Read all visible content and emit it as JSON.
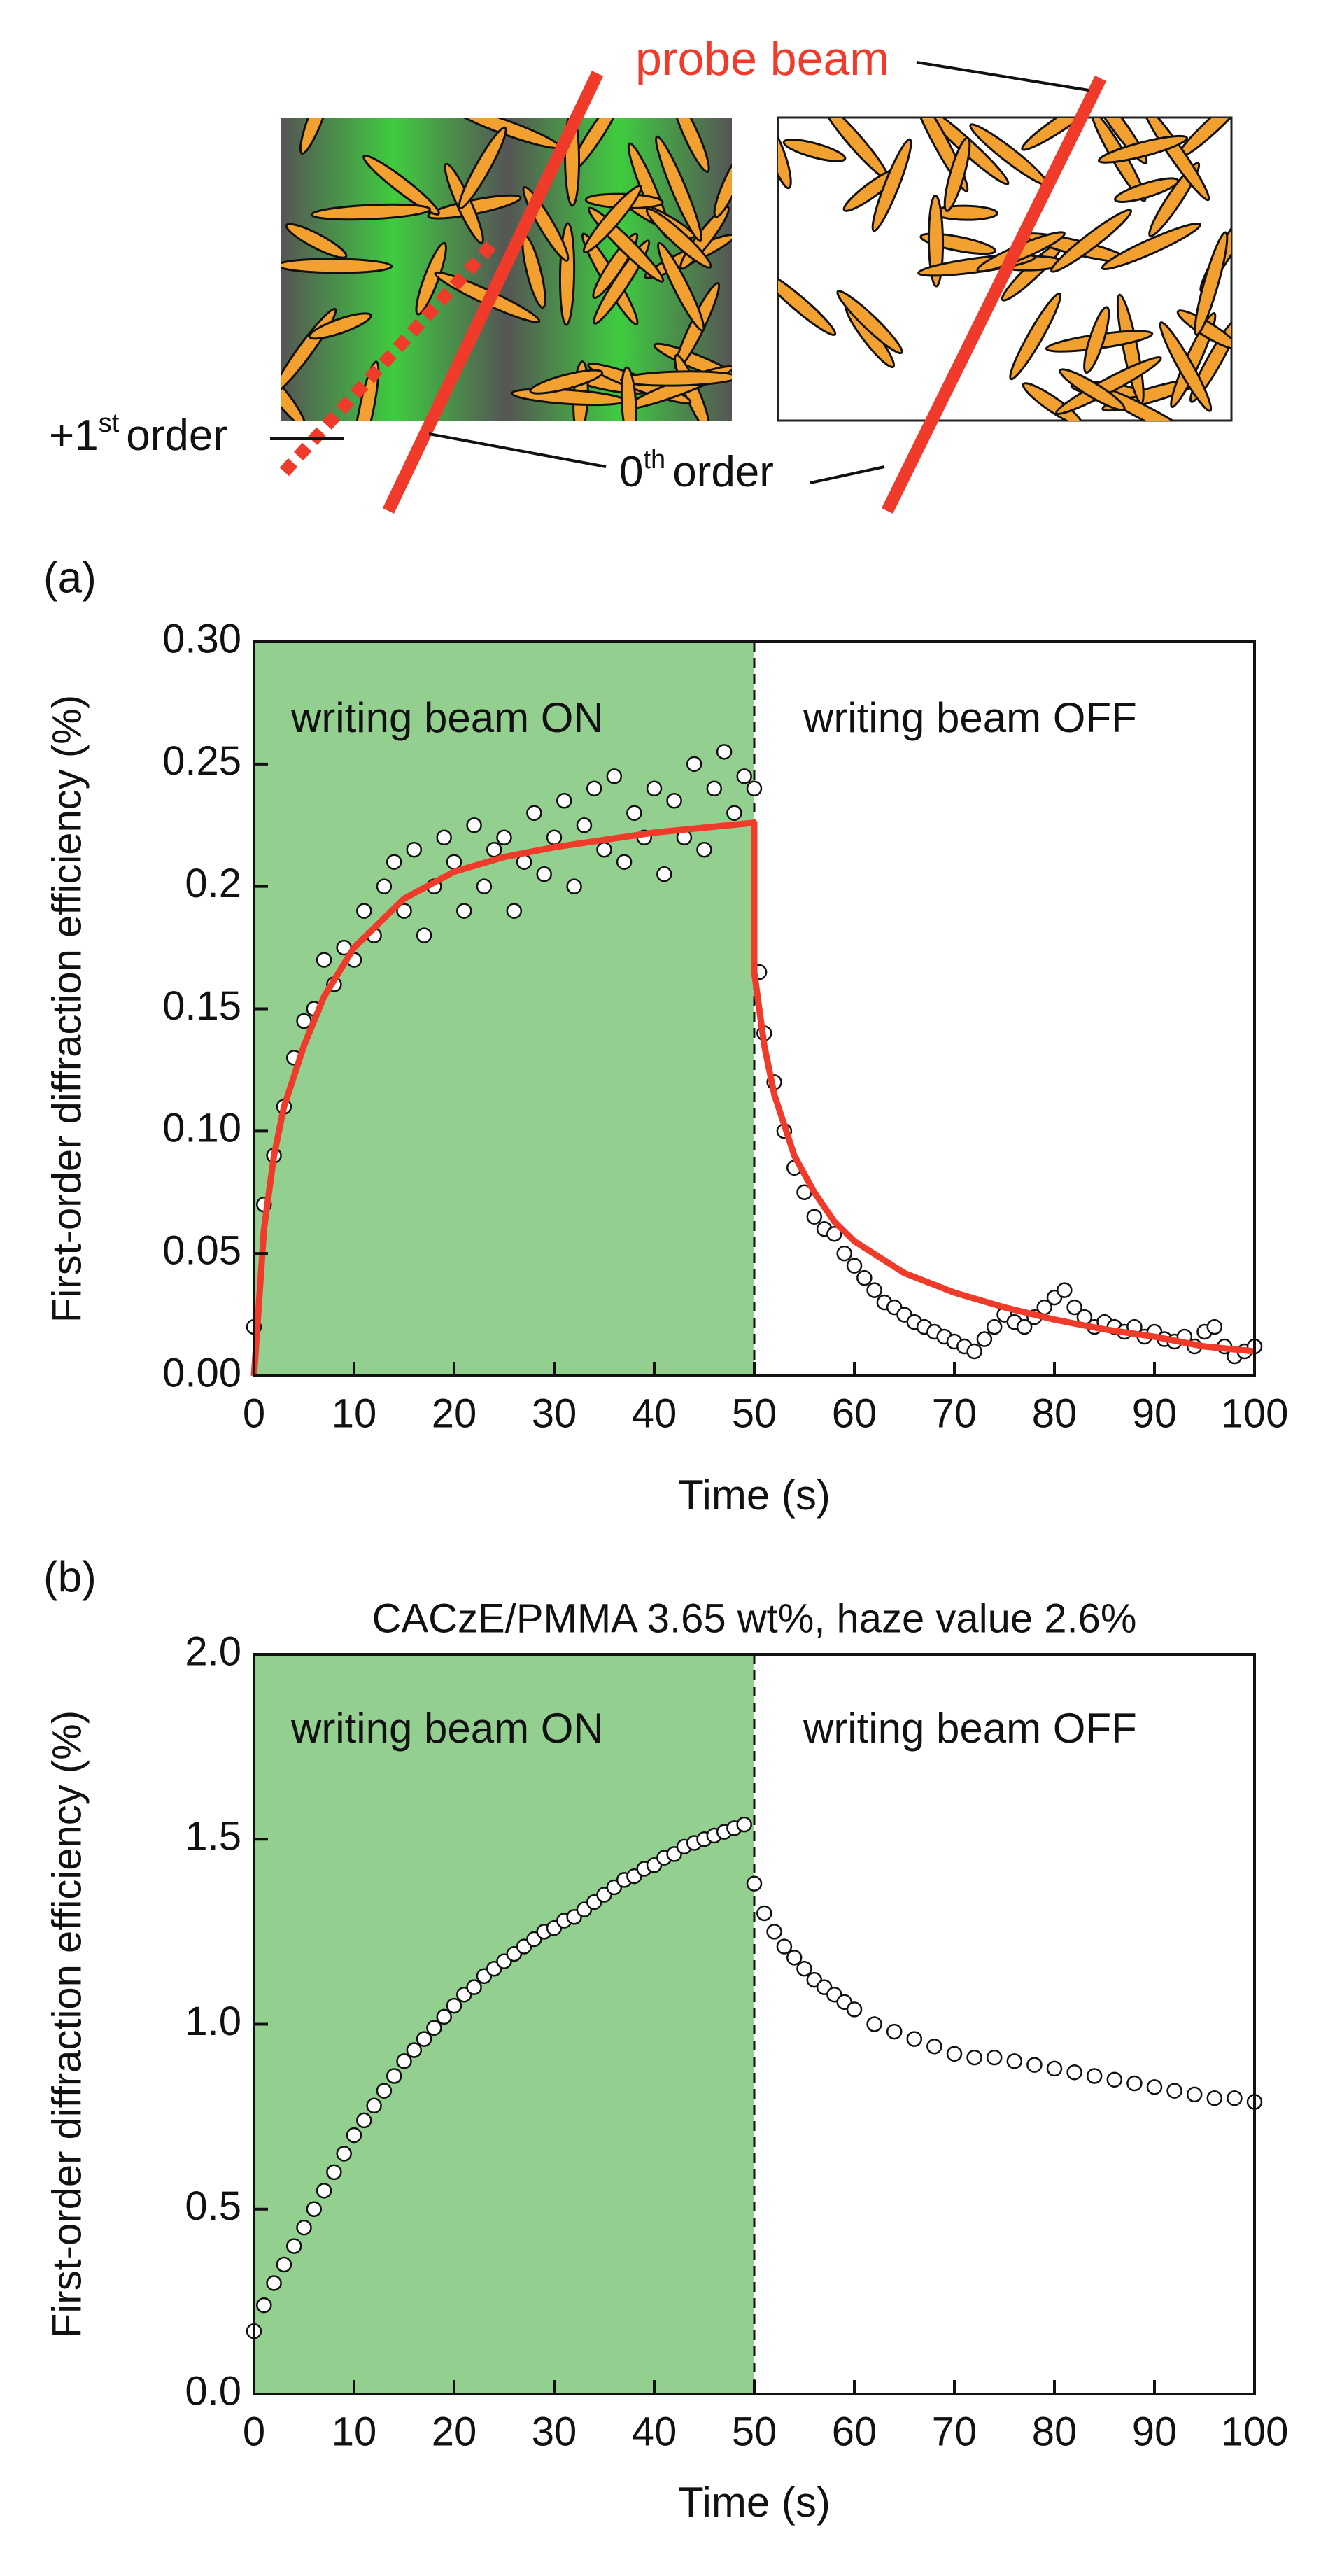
{
  "schematic": {
    "probe_label": "probe beam",
    "first_order": [
      "+1",
      "st",
      "order"
    ],
    "zeroth_order": [
      "0",
      "th",
      "order"
    ]
  },
  "chart_data": [
    {
      "type": "scatter",
      "label": "(a)",
      "xlabel": "Time (s)",
      "ylabel": "First-order diffraction efficiency (%)",
      "xlim": [
        0,
        100
      ],
      "ylim": [
        0,
        0.3
      ],
      "xticks": [
        0,
        10,
        20,
        30,
        40,
        50,
        60,
        70,
        80,
        90,
        100
      ],
      "yticks": [
        {
          "value": 0,
          "label": "0.00"
        },
        0.05,
        {
          "value": 0.1,
          "label": "0.10"
        },
        0.15,
        0.2,
        0.25,
        {
          "value": 0.3,
          "label": "0.30"
        }
      ],
      "shade": [
        0,
        50
      ],
      "shade_color": "#93cf8f",
      "annotations": [
        "writing beam ON",
        "writing beam OFF"
      ],
      "series": [
        {
          "kind": "markers",
          "color": "#ffffff",
          "x": [
            0,
            1,
            2,
            3,
            4,
            5,
            6,
            7,
            8,
            9,
            10,
            11,
            12,
            13,
            14,
            15,
            16,
            17,
            18,
            19,
            20,
            21,
            22,
            23,
            24,
            25,
            26,
            27,
            28,
            29,
            30,
            31,
            32,
            33,
            34,
            35,
            36,
            37,
            38,
            39,
            40,
            41,
            42,
            43,
            44,
            45,
            46,
            47,
            48,
            49,
            50,
            50.5,
            51,
            52,
            53,
            54,
            55,
            56,
            57,
            58,
            59,
            60,
            61,
            62,
            63,
            64,
            65,
            66,
            67,
            68,
            69,
            70,
            71,
            72,
            73,
            74,
            75,
            76,
            77,
            78,
            79,
            80,
            81,
            82,
            83,
            84,
            85,
            86,
            87,
            88,
            89,
            90,
            91,
            92,
            93,
            94,
            95,
            96,
            97,
            98,
            99,
            100
          ],
          "values": [
            0.02,
            0.07,
            0.09,
            0.11,
            0.13,
            0.145,
            0.15,
            0.17,
            0.16,
            0.175,
            0.17,
            0.19,
            0.18,
            0.2,
            0.21,
            0.19,
            0.215,
            0.18,
            0.2,
            0.22,
            0.21,
            0.19,
            0.225,
            0.2,
            0.215,
            0.22,
            0.19,
            0.21,
            0.23,
            0.205,
            0.22,
            0.235,
            0.2,
            0.225,
            0.24,
            0.215,
            0.245,
            0.21,
            0.23,
            0.22,
            0.24,
            0.205,
            0.235,
            0.22,
            0.25,
            0.215,
            0.24,
            0.255,
            0.23,
            0.245,
            0.24,
            0.165,
            0.14,
            0.12,
            0.1,
            0.085,
            0.075,
            0.065,
            0.06,
            0.058,
            0.05,
            0.045,
            0.04,
            0.035,
            0.03,
            0.028,
            0.025,
            0.022,
            0.02,
            0.018,
            0.016,
            0.014,
            0.012,
            0.01,
            0.015,
            0.02,
            0.025,
            0.022,
            0.02,
            0.024,
            0.028,
            0.032,
            0.035,
            0.028,
            0.024,
            0.02,
            0.022,
            0.02,
            0.018,
            0.02,
            0.016,
            0.018,
            0.015,
            0.014,
            0.016,
            0.012,
            0.018,
            0.02,
            0.012,
            0.008,
            0.01,
            0.012
          ]
        },
        {
          "kind": "line",
          "color": "#f03a2a",
          "x": [
            0,
            1,
            2,
            3,
            5,
            7,
            10,
            15,
            20,
            25,
            30,
            35,
            40,
            45,
            50,
            50,
            51,
            52,
            54,
            56,
            58,
            60,
            65,
            70,
            75,
            80,
            85,
            90,
            95,
            100
          ],
          "values": [
            0,
            0.06,
            0.09,
            0.11,
            0.135,
            0.155,
            0.175,
            0.195,
            0.206,
            0.212,
            0.216,
            0.219,
            0.222,
            0.224,
            0.226,
            0.165,
            0.135,
            0.115,
            0.09,
            0.075,
            0.063,
            0.055,
            0.042,
            0.034,
            0.028,
            0.023,
            0.019,
            0.016,
            0.012,
            0.01
          ]
        }
      ]
    },
    {
      "type": "scatter",
      "label": "(b)",
      "title": "CACzE/PMMA 3.65 wt%, haze value 2.6%",
      "xlabel": "Time (s)",
      "ylabel": "First-order diffraction efficiency (%)",
      "xlim": [
        0,
        100
      ],
      "ylim": [
        0,
        2
      ],
      "xticks": [
        0,
        10,
        20,
        30,
        40,
        50,
        60,
        70,
        80,
        90,
        100
      ],
      "yticks": [
        {
          "value": 0,
          "label": "0.0"
        },
        0.5,
        {
          "value": 1,
          "label": "1.0"
        },
        1.5,
        {
          "value": 2,
          "label": "2.0"
        }
      ],
      "shade": [
        0,
        50
      ],
      "shade_color": "#93cf8f",
      "annotations": [
        "writing beam ON",
        "writing beam OFF"
      ],
      "series": [
        {
          "kind": "markers",
          "color": "#ffffff",
          "x": [
            0,
            1,
            2,
            3,
            4,
            5,
            6,
            7,
            8,
            9,
            10,
            11,
            12,
            13,
            14,
            15,
            16,
            17,
            18,
            19,
            20,
            21,
            22,
            23,
            24,
            25,
            26,
            27,
            28,
            29,
            30,
            31,
            32,
            33,
            34,
            35,
            36,
            37,
            38,
            39,
            40,
            41,
            42,
            43,
            44,
            45,
            46,
            47,
            48,
            49,
            50,
            51,
            52,
            53,
            54,
            55,
            56,
            57,
            58,
            59,
            60,
            62,
            64,
            66,
            68,
            70,
            72,
            74,
            76,
            78,
            80,
            82,
            84,
            86,
            88,
            90,
            92,
            94,
            96,
            98,
            100
          ],
          "values": [
            0.17,
            0.24,
            0.3,
            0.35,
            0.4,
            0.45,
            0.5,
            0.55,
            0.6,
            0.65,
            0.7,
            0.74,
            0.78,
            0.82,
            0.86,
            0.9,
            0.93,
            0.96,
            0.99,
            1.02,
            1.05,
            1.08,
            1.1,
            1.13,
            1.15,
            1.17,
            1.19,
            1.21,
            1.23,
            1.25,
            1.26,
            1.28,
            1.29,
            1.31,
            1.33,
            1.35,
            1.37,
            1.39,
            1.4,
            1.42,
            1.43,
            1.45,
            1.46,
            1.48,
            1.49,
            1.5,
            1.51,
            1.52,
            1.53,
            1.54,
            1.38,
            1.3,
            1.25,
            1.21,
            1.18,
            1.15,
            1.12,
            1.1,
            1.08,
            1.06,
            1.04,
            1.0,
            0.98,
            0.96,
            0.94,
            0.92,
            0.91,
            0.91,
            0.9,
            0.89,
            0.88,
            0.87,
            0.86,
            0.85,
            0.84,
            0.83,
            0.82,
            0.81,
            0.8,
            0.8,
            0.79
          ]
        }
      ]
    }
  ]
}
